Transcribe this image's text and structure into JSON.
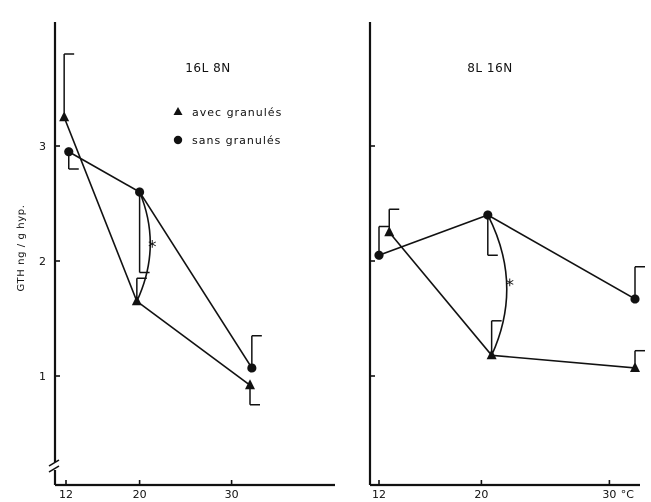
{
  "chart_data": [
    {
      "type": "line",
      "panel_title": "16L 8N",
      "xlabel": "",
      "ylabel": "GTH ng / g hyp.",
      "xlim": [
        11,
        33
      ],
      "ylim": [
        0.5,
        4.0
      ],
      "x_ticks": [
        12,
        20,
        30
      ],
      "x_tick_labels": [
        "12",
        "20",
        "30"
      ],
      "y_ticks": [
        1,
        2,
        3
      ],
      "y_tick_labels": [
        "1",
        "2",
        "3"
      ],
      "y_axis_break": true,
      "legend": {
        "position": "top-right"
      },
      "series": [
        {
          "name": "avec granulés",
          "marker": "triangle",
          "points": [
            {
              "x": 11.8,
              "y": 3.25,
              "err_high": 3.8
            },
            {
              "x": 19.7,
              "y": 1.65,
              "err_high": 1.85
            },
            {
              "x": 32.0,
              "y": 0.92,
              "err_low": 0.75
            }
          ]
        },
        {
          "name": "sans granulés",
          "marker": "circle",
          "points": [
            {
              "x": 12.3,
              "y": 2.95,
              "err_low": 2.8
            },
            {
              "x": 20.0,
              "y": 2.6,
              "err_low": 1.9
            },
            {
              "x": 32.2,
              "y": 1.07,
              "err_high": 1.35
            }
          ]
        }
      ],
      "annotations": [
        {
          "text": "*",
          "x": 20,
          "between": [
            "avec granulés",
            "sans granulés"
          ]
        }
      ]
    },
    {
      "type": "line",
      "panel_title": "8L 16N",
      "xlabel": "°C",
      "ylabel": "",
      "xlim": [
        11,
        33
      ],
      "ylim": [
        0.5,
        4.0
      ],
      "x_ticks": [
        12,
        20,
        30
      ],
      "x_tick_labels": [
        "12",
        "20",
        "30"
      ],
      "y_ticks": [
        1,
        2,
        3
      ],
      "series": [
        {
          "name": "avec granulés",
          "marker": "triangle",
          "points": [
            {
              "x": 12.8,
              "y": 2.25,
              "err_high": 2.45
            },
            {
              "x": 20.8,
              "y": 1.18,
              "err_high": 1.48
            },
            {
              "x": 32.0,
              "y": 1.07,
              "err_high": 1.22
            }
          ]
        },
        {
          "name": "sans granulés",
          "marker": "circle",
          "points": [
            {
              "x": 12.0,
              "y": 2.05,
              "err_high": 2.3
            },
            {
              "x": 20.5,
              "y": 2.4,
              "err_low": 2.05
            },
            {
              "x": 32.0,
              "y": 1.67,
              "err_high": 1.95
            }
          ]
        }
      ],
      "annotations": [
        {
          "text": "*",
          "x": 20.5,
          "between": [
            "avec granulés",
            "sans granulés"
          ]
        }
      ]
    }
  ]
}
